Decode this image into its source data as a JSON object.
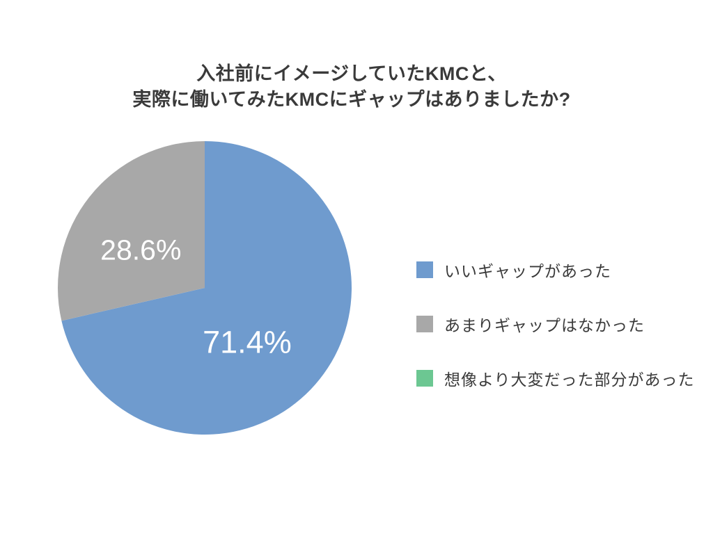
{
  "title": {
    "line1": "入社前にイメージしていたKMCと、",
    "line2": "実際に働いてみたKMCにギャップはありましたか?"
  },
  "chart_data": {
    "type": "pie",
    "title": "入社前にイメージしていたKMCと、実際に働いてみたKMCにギャップはありましたか?",
    "unit": "%",
    "start_angle_deg": 0,
    "direction": "clockwise",
    "legend_position": "right",
    "background": "#ffffff",
    "value_label_color": "#ffffff",
    "slices": [
      {
        "label": "いいギャップがあった",
        "value": 71.4,
        "display": "71.4%",
        "color": "#6F9BCE"
      },
      {
        "label": "あまりギャップはなかった",
        "value": 28.6,
        "display": "28.6%",
        "color": "#A8A8A8"
      },
      {
        "label": "想像より大変だった部分があった",
        "value": 0,
        "display": "",
        "color": "#6CC792"
      }
    ]
  }
}
